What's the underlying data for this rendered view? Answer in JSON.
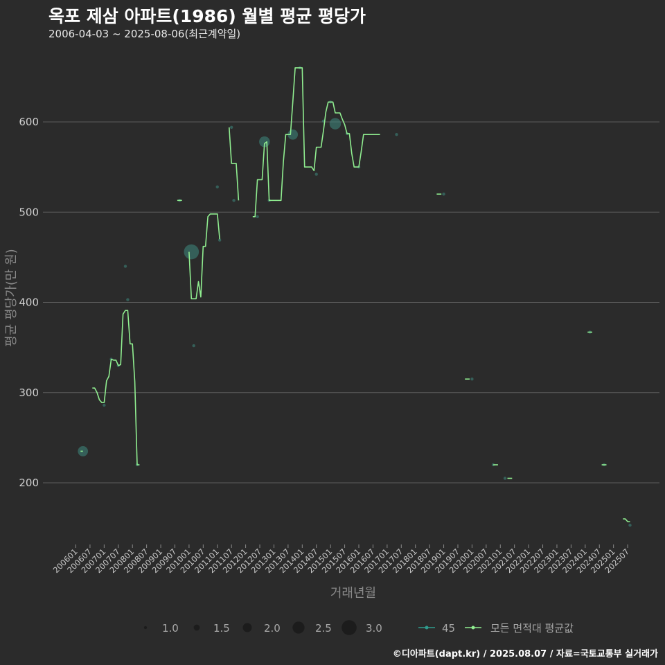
{
  "header": {
    "title": "옥포 제삼 아파트(1986) 월별 평균 평당가",
    "subtitle": "2006-04-03 ~ 2025-08-06(최근계약일)"
  },
  "footer": {
    "caption": "©디아파트(dapt.kr) / 2025.08.07 / 자료=국토교통부 실거래가"
  },
  "colors": {
    "background": "#2b2b2b",
    "grid": "#5e5e5e",
    "line": "#90ee90",
    "point": "#3e8a80",
    "legend_point": "#2f9c8e"
  },
  "chart_data": {
    "type": "line",
    "title": "옥포 제삼 아파트(1986) 월별 평균 평당가",
    "xlabel": "거래년월",
    "ylabel": "평균 평당가(만 원)",
    "ylim": [
      140,
      670
    ],
    "yticks": [
      200,
      300,
      400,
      500,
      600
    ],
    "xrange": [
      "200601",
      "202508"
    ],
    "xticks": [
      "200601",
      "200607",
      "200701",
      "200707",
      "200801",
      "200807",
      "200901",
      "200907",
      "201001",
      "201007",
      "201101",
      "201107",
      "201201",
      "201207",
      "201301",
      "201307",
      "201401",
      "201407",
      "201501",
      "201507",
      "201601",
      "201607",
      "201701",
      "201707",
      "201801",
      "201807",
      "201901",
      "201907",
      "202001",
      "202007",
      "202101",
      "202107",
      "202201",
      "202207",
      "202301",
      "202307",
      "202401",
      "202407",
      "202501",
      "202507"
    ],
    "series": [
      {
        "name": "모든 면적대 평균값",
        "points": [
          [
            "200603",
            235
          ],
          [
            "200604",
            235
          ],
          [
            "200608",
            305
          ],
          [
            "200609",
            305
          ],
          [
            "200610",
            300
          ],
          [
            "200611",
            292
          ],
          [
            "200612",
            289
          ],
          [
            "200701",
            289
          ],
          [
            "200702",
            313
          ],
          [
            "200703",
            318
          ],
          [
            "200704",
            337
          ],
          [
            "200705",
            336
          ],
          [
            "200706",
            336
          ],
          [
            "200707",
            330
          ],
          [
            "200708",
            331
          ],
          [
            "200709",
            387
          ],
          [
            "200710",
            391
          ],
          [
            "200711",
            391
          ],
          [
            "200712",
            354
          ],
          [
            "200801",
            354
          ],
          [
            "200802",
            312
          ],
          [
            "200803",
            220
          ],
          [
            "200804",
            220
          ],
          [
            "200908",
            513
          ],
          [
            "200909",
            513
          ],
          [
            "200910",
            513
          ],
          [
            "201001",
            456
          ],
          [
            "201002",
            404
          ],
          [
            "201003",
            404
          ],
          [
            "201004",
            404
          ],
          [
            "201005",
            423
          ],
          [
            "201006",
            406
          ],
          [
            "201007",
            462
          ],
          [
            "201008",
            462
          ],
          [
            "201009",
            495
          ],
          [
            "201010",
            498
          ],
          [
            "201011",
            498
          ],
          [
            "201012",
            498
          ],
          [
            "201101",
            498
          ],
          [
            "201102",
            470
          ],
          [
            "201106",
            594
          ],
          [
            "201107",
            554
          ],
          [
            "201108",
            554
          ],
          [
            "201109",
            554
          ],
          [
            "201110",
            513
          ],
          [
            "201204",
            495
          ],
          [
            "201205",
            495
          ],
          [
            "201206",
            536
          ],
          [
            "201207",
            536
          ],
          [
            "201208",
            536
          ],
          [
            "201209",
            576
          ],
          [
            "201210",
            578
          ],
          [
            "201211",
            513
          ],
          [
            "201212",
            513
          ],
          [
            "201301",
            513
          ],
          [
            "201302",
            513
          ],
          [
            "201303",
            513
          ],
          [
            "201304",
            513
          ],
          [
            "201305",
            556
          ],
          [
            "201306",
            586
          ],
          [
            "201307",
            586
          ],
          [
            "201308",
            586
          ],
          [
            "201309",
            622
          ],
          [
            "201310",
            660
          ],
          [
            "201311",
            660
          ],
          [
            "201312",
            660
          ],
          [
            "201401",
            660
          ],
          [
            "201402",
            550
          ],
          [
            "201403",
            550
          ],
          [
            "201404",
            550
          ],
          [
            "201405",
            550
          ],
          [
            "201406",
            546
          ],
          [
            "201407",
            572
          ],
          [
            "201408",
            572
          ],
          [
            "201409",
            572
          ],
          [
            "201410",
            590
          ],
          [
            "201411",
            611
          ],
          [
            "201412",
            622
          ],
          [
            "201501",
            622
          ],
          [
            "201502",
            622
          ],
          [
            "201503",
            610
          ],
          [
            "201504",
            610
          ],
          [
            "201505",
            610
          ],
          [
            "201506",
            603
          ],
          [
            "201507",
            597
          ],
          [
            "201508",
            587
          ],
          [
            "201509",
            587
          ],
          [
            "201510",
            565
          ],
          [
            "201511",
            550
          ],
          [
            "201512",
            550
          ],
          [
            "201601",
            550
          ],
          [
            "201602",
            567
          ],
          [
            "201603",
            586
          ],
          [
            "201604",
            586
          ],
          [
            "201605",
            586
          ],
          [
            "201606",
            586
          ],
          [
            "201607",
            586
          ],
          [
            "201608",
            586
          ],
          [
            "201609",
            586
          ],
          [
            "201610",
            586
          ],
          [
            "201810",
            520
          ],
          [
            "201811",
            520
          ],
          [
            "201812",
            520
          ],
          [
            "201910",
            315
          ],
          [
            "201911",
            315
          ],
          [
            "201912",
            315
          ],
          [
            "202010",
            220
          ],
          [
            "202011",
            220
          ],
          [
            "202012",
            220
          ],
          [
            "202104",
            205
          ],
          [
            "202105",
            205
          ],
          [
            "202106",
            205
          ],
          [
            "202402",
            367
          ],
          [
            "202403",
            367
          ],
          [
            "202404",
            367
          ],
          [
            "202408",
            220
          ],
          [
            "202409",
            220
          ],
          [
            "202410",
            220
          ],
          [
            "202505",
            160
          ],
          [
            "202506",
            160
          ],
          [
            "202507",
            157
          ],
          [
            "202508",
            157
          ]
        ]
      }
    ],
    "points_series": {
      "name": "45",
      "size_legend": [
        1.0,
        1.5,
        2.0,
        2.5,
        3.0
      ],
      "points": [
        [
          "200604",
          235,
          2.2
        ],
        [
          "200701",
          286,
          1.0
        ],
        [
          "200710",
          440,
          1.0
        ],
        [
          "200711",
          403,
          1.0
        ],
        [
          "200707",
          330,
          1.0
        ],
        [
          "200704",
          337,
          1.0
        ],
        [
          "200803",
          220,
          1.0
        ],
        [
          "200909",
          513,
          1.0
        ],
        [
          "201002",
          456,
          3.0
        ],
        [
          "201003",
          352,
          1.0
        ],
        [
          "201101",
          528,
          1.0
        ],
        [
          "201102",
          469,
          1.0
        ],
        [
          "201107",
          594,
          1.0
        ],
        [
          "201108",
          513,
          1.0
        ],
        [
          "201206",
          495,
          1.0
        ],
        [
          "201209",
          578,
          2.3
        ],
        [
          "201211",
          513,
          1.0
        ],
        [
          "201309",
          586,
          2.2
        ],
        [
          "201312",
          660,
          1.0
        ],
        [
          "201407",
          542,
          1.0
        ],
        [
          "201410",
          601,
          1.0
        ],
        [
          "201501",
          622,
          1.0
        ],
        [
          "201503",
          598,
          2.4
        ],
        [
          "201508",
          587,
          1.0
        ],
        [
          "201601",
          550,
          1.0
        ],
        [
          "201705",
          586,
          1.0
        ],
        [
          "201901",
          520,
          1.0
        ],
        [
          "202001",
          315,
          1.0
        ],
        [
          "202010",
          220,
          1.0
        ],
        [
          "202103",
          205,
          1.0
        ],
        [
          "202403",
          367,
          1.0
        ],
        [
          "202409",
          220,
          1.0
        ],
        [
          "202508",
          153,
          1.0
        ]
      ]
    },
    "legend": {
      "size_title": "",
      "point_label": "45",
      "line_label": "모든 면적대 평균값",
      "position": "bottom"
    }
  }
}
